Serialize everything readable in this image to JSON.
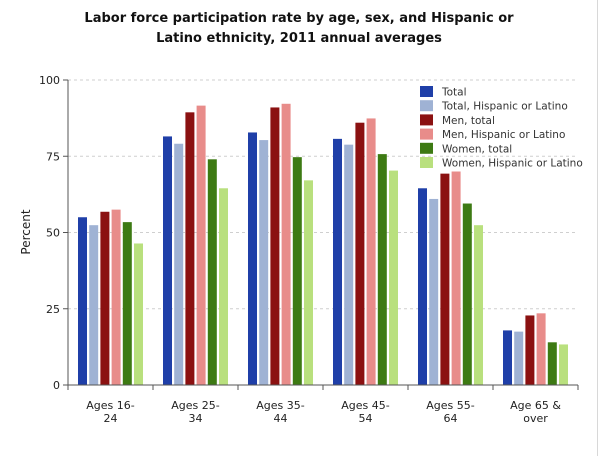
{
  "chart_data": {
    "type": "bar",
    "title_lines": [
      "Labor force participation rate by age, sex, and Hispanic or",
      "Latino ethnicity, 2011 annual averages"
    ],
    "xlabel": "",
    "ylabel": "Percent",
    "ylim": [
      0,
      100
    ],
    "yticks": [
      0,
      25,
      50,
      75,
      100
    ],
    "categories": [
      [
        "Ages 16-",
        "24"
      ],
      [
        "Ages 25-",
        "34"
      ],
      [
        "Ages 35-",
        "44"
      ],
      [
        "Ages 45-",
        "54"
      ],
      [
        "Ages 55-",
        "64"
      ],
      [
        "Age 65 &",
        "over"
      ]
    ],
    "grid": "horizontal dashed",
    "legend_position": "top-right",
    "series": [
      {
        "name": "Total",
        "color": "#1f3fa8",
        "values": [
          55.0,
          81.5,
          82.8,
          80.7,
          64.5,
          17.9
        ]
      },
      {
        "name": "Total, Hispanic or Latino",
        "color": "#9fb2d4",
        "values": [
          52.4,
          79.1,
          80.3,
          78.8,
          61.0,
          17.5
        ]
      },
      {
        "name": "Men, total",
        "color": "#8b1111",
        "values": [
          56.8,
          89.4,
          91.0,
          86.0,
          69.3,
          22.8
        ]
      },
      {
        "name": "Men, Hispanic or Latino",
        "color": "#e88c8a",
        "values": [
          57.5,
          91.6,
          92.2,
          87.4,
          70.0,
          23.5
        ]
      },
      {
        "name": "Women, total",
        "color": "#3d7a13",
        "values": [
          53.4,
          74.0,
          74.7,
          75.7,
          59.5,
          14.0
        ]
      },
      {
        "name": "Women, Hispanic or Latino",
        "color": "#b9e07e",
        "values": [
          46.4,
          64.5,
          67.1,
          70.3,
          52.4,
          13.3
        ]
      }
    ]
  }
}
